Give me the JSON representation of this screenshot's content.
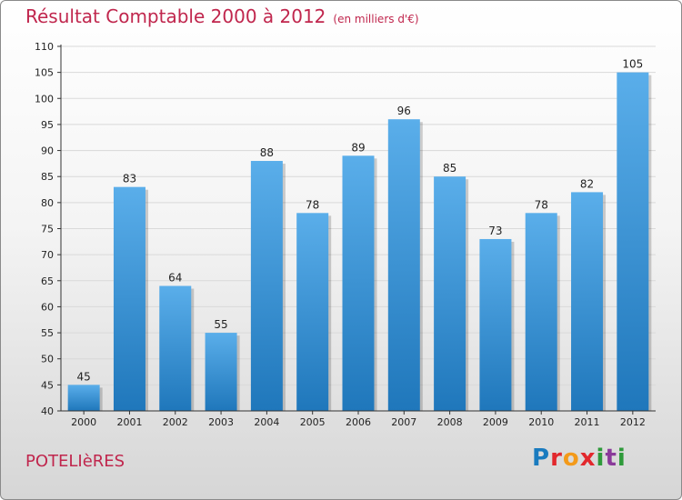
{
  "title": "Résultat Comptable 2000 à 2012",
  "subtitle": "(en milliers d'€)",
  "commune": "POTELIèRES",
  "brand": "Proxiti",
  "colors": {
    "bar_light": "#5aaeea",
    "bar_dark": "#1f77bb",
    "title": "#c0264d",
    "axis": "#333333"
  },
  "chart_data": {
    "type": "bar",
    "title": "Résultat Comptable 2000 à 2012",
    "ylabel": "en milliers d'€",
    "xlabel": "",
    "categories": [
      "2000",
      "2001",
      "2002",
      "2003",
      "2004",
      "2005",
      "2006",
      "2007",
      "2008",
      "2009",
      "2010",
      "2011",
      "2012"
    ],
    "values": [
      45,
      83,
      64,
      55,
      88,
      78,
      89,
      96,
      85,
      73,
      78,
      82,
      105
    ],
    "ylim": [
      40,
      110
    ],
    "yticks": [
      40,
      45,
      50,
      55,
      60,
      65,
      70,
      75,
      80,
      85,
      90,
      95,
      100,
      105,
      110
    ],
    "grid": true,
    "data_labels": true
  }
}
